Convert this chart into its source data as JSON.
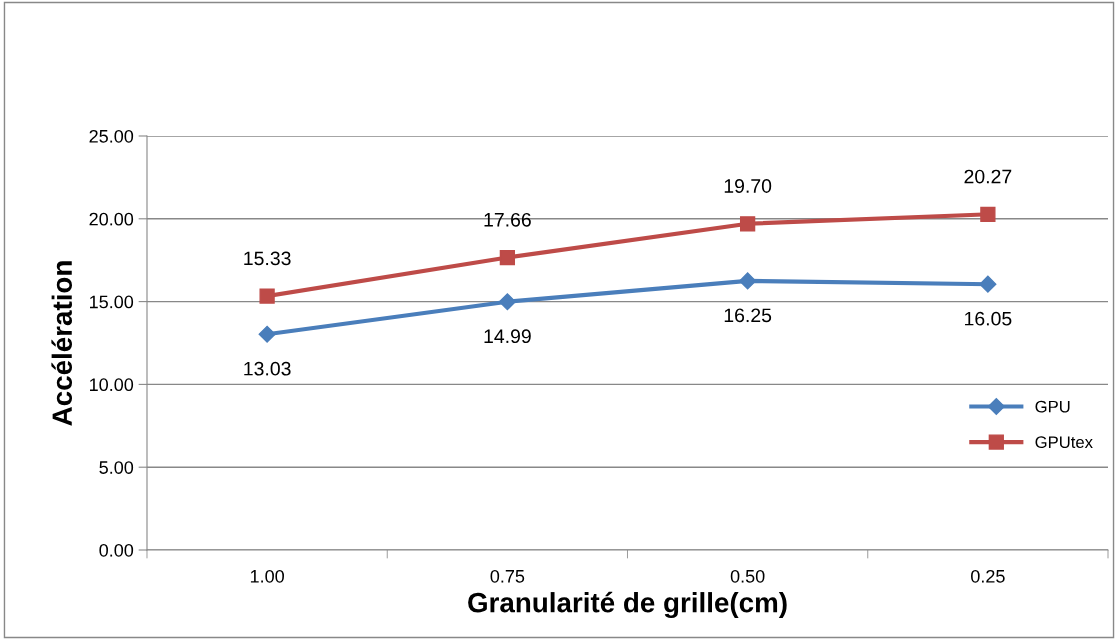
{
  "chart_data": {
    "type": "line",
    "xlabel": "Granularité de grille(cm)",
    "ylabel": "Accélération",
    "categories": [
      "1.00",
      "0.75",
      "0.50",
      "0.25"
    ],
    "series": [
      {
        "name": "GPU",
        "color": "#4a7ebb",
        "marker": "diamond",
        "values": [
          13.03,
          14.99,
          16.25,
          16.05
        ],
        "value_labels": [
          "13.03",
          "14.99",
          "16.25",
          "16.05"
        ]
      },
      {
        "name": "GPUtex",
        "color": "#be4b48",
        "marker": "square",
        "values": [
          15.33,
          17.66,
          19.7,
          20.27
        ],
        "value_labels": [
          "15.33",
          "17.66",
          "19.70",
          "20.27"
        ]
      }
    ],
    "ylim": [
      0,
      25
    ],
    "yticks": [
      {
        "value": 0,
        "label": "0.00"
      },
      {
        "value": 5,
        "label": "5.00"
      },
      {
        "value": 10,
        "label": "10.00"
      },
      {
        "value": 15,
        "label": "15.00"
      },
      {
        "value": 20,
        "label": "20.00"
      },
      {
        "value": 25,
        "label": "25.00"
      }
    ],
    "grid": "y",
    "legend": "right",
    "line_style": "solid"
  }
}
